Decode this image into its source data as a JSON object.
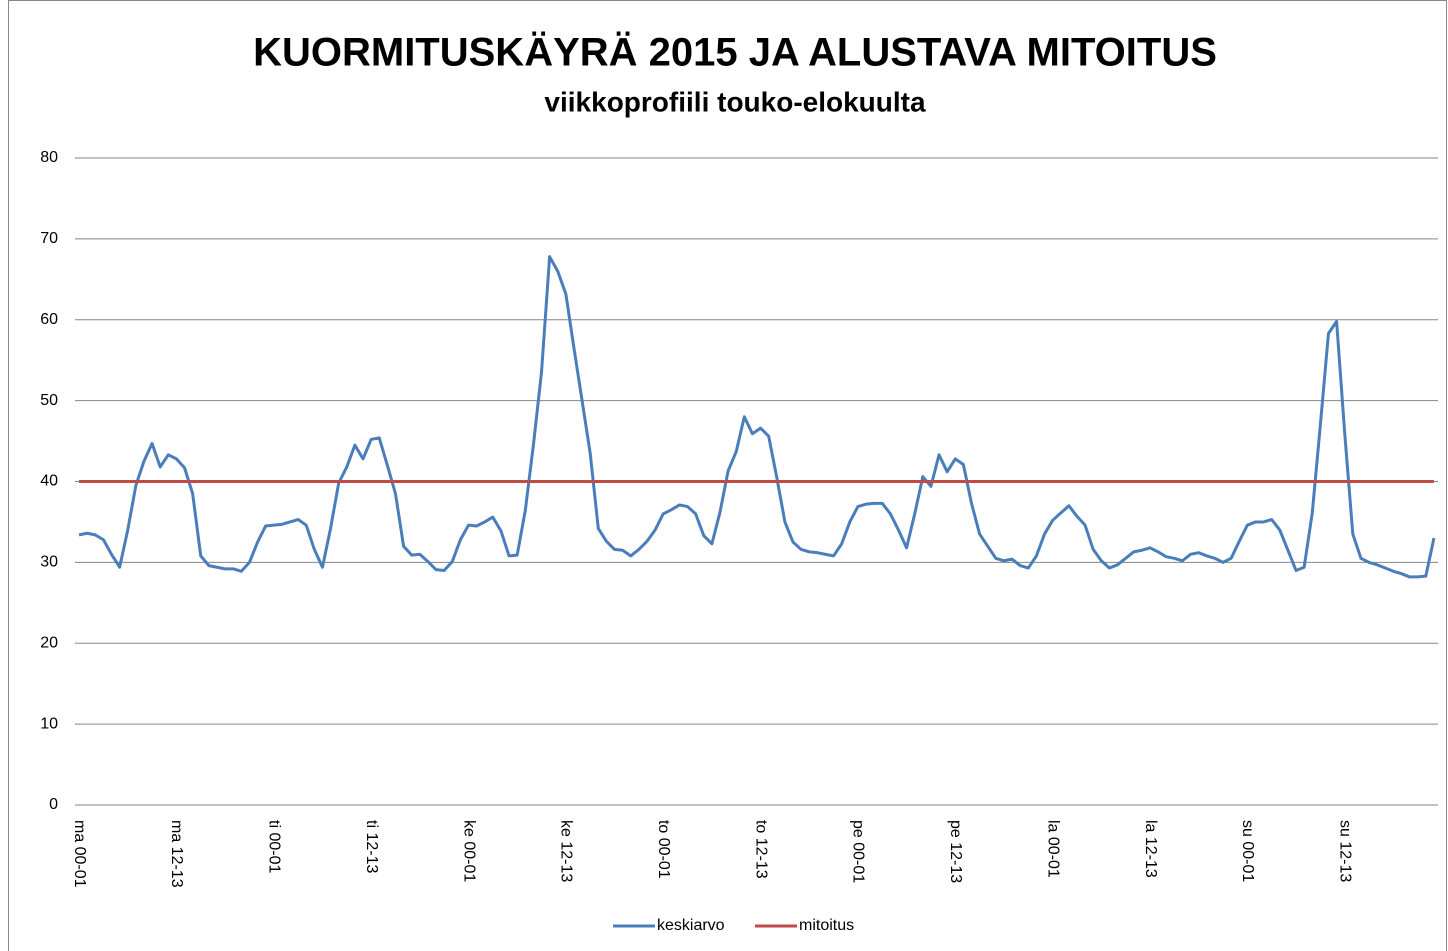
{
  "chart_data": {
    "type": "line",
    "title": "KUORMITUSKÄYRÄ 2015 JA ALUSTAVA MITOITUS",
    "subtitle": "viikkoprofiili touko-elokuulta",
    "categories": [
      "ma 00-01",
      null,
      null,
      null,
      null,
      null,
      null,
      null,
      null,
      null,
      null,
      null,
      "ma 12-13",
      null,
      null,
      null,
      null,
      null,
      null,
      null,
      null,
      null,
      null,
      null,
      "ti 00-01",
      null,
      null,
      null,
      null,
      null,
      null,
      null,
      null,
      null,
      null,
      null,
      "ti 12-13",
      null,
      null,
      null,
      null,
      null,
      null,
      null,
      null,
      null,
      null,
      null,
      "ke 00-01",
      null,
      null,
      null,
      null,
      null,
      null,
      null,
      null,
      null,
      null,
      null,
      "ke 12-13",
      null,
      null,
      null,
      null,
      null,
      null,
      null,
      null,
      null,
      null,
      null,
      "to 00-01",
      null,
      null,
      null,
      null,
      null,
      null,
      null,
      null,
      null,
      null,
      null,
      "to 12-13",
      null,
      null,
      null,
      null,
      null,
      null,
      null,
      null,
      null,
      null,
      null,
      "pe 00-01",
      null,
      null,
      null,
      null,
      null,
      null,
      null,
      null,
      null,
      null,
      null,
      "pe 12-13",
      null,
      null,
      null,
      null,
      null,
      null,
      null,
      null,
      null,
      null,
      null,
      "la 00-01",
      null,
      null,
      null,
      null,
      null,
      null,
      null,
      null,
      null,
      null,
      null,
      "la 12-13",
      null,
      null,
      null,
      null,
      null,
      null,
      null,
      null,
      null,
      null,
      null,
      "su 00-01",
      null,
      null,
      null,
      null,
      null,
      null,
      null,
      null,
      null,
      null,
      null,
      "su 12-13",
      null,
      null,
      null,
      null,
      null,
      null,
      null,
      null,
      null,
      null,
      null
    ],
    "series": [
      {
        "name": "keskiarvo",
        "color": "#4a7ebb",
        "values": [
          33.4,
          33.6,
          33.4,
          32.8,
          31,
          29.4,
          34,
          39.5,
          42.5,
          44.7,
          41.8,
          43.3,
          42.8,
          41.7,
          38.5,
          30.8,
          29.6,
          29.4,
          29.2,
          29.2,
          28.9,
          30,
          32.5,
          34.5,
          34.6,
          34.7,
          35,
          35.3,
          34.6,
          31.6,
          29.4,
          34.2,
          39.8,
          41.8,
          44.5,
          42.8,
          45.2,
          45.4,
          42,
          38.5,
          32,
          30.9,
          31,
          30.1,
          29.1,
          29,
          30.1,
          32.8,
          34.6,
          34.5,
          35,
          35.6,
          33.9,
          30.8,
          30.9,
          36.4,
          44.5,
          53.5,
          67.8,
          66,
          63.2,
          56.5,
          50,
          43.5,
          34.2,
          32.6,
          31.6,
          31.5,
          30.8,
          31.6,
          32.6,
          34,
          36,
          36.5,
          37.1,
          36.9,
          36,
          33.3,
          32.3,
          36.2,
          41.3,
          43.7,
          48,
          45.9,
          46.6,
          45.6,
          40.5,
          35,
          32.5,
          31.6,
          31.3,
          31.2,
          31,
          30.8,
          32.3,
          35,
          36.9,
          37.2,
          37.3,
          37.3,
          36,
          34,
          31.8,
          36,
          40.6,
          39.4,
          43.3,
          41.2,
          42.8,
          42.1,
          37.3,
          33.5,
          32,
          30.5,
          30.2,
          30.4,
          29.6,
          29.3,
          30.8,
          33.5,
          35.2,
          36.1,
          37,
          35.7,
          34.6,
          31.6,
          30.2,
          29.3,
          29.7,
          30.5,
          31.3,
          31.5,
          31.8,
          31.3,
          30.7,
          30.5,
          30.2,
          31,
          31.2,
          30.8,
          30.5,
          30,
          30.5,
          32.6,
          34.6,
          35,
          35,
          35.3,
          34,
          31.5,
          29,
          29.4,
          36.1,
          47,
          58.3,
          59.8,
          46,
          33.5,
          30.5,
          30,
          29.7,
          29.3,
          28.9,
          28.6,
          28.2,
          28.2,
          28.3,
          33
        ]
      },
      {
        "name": "mitoitus",
        "color": "#be4b48",
        "values": [
          40,
          40,
          40,
          40,
          40,
          40,
          40,
          40,
          40,
          40,
          40,
          40,
          40,
          40,
          40,
          40,
          40,
          40,
          40,
          40,
          40,
          40,
          40,
          40,
          40,
          40,
          40,
          40,
          40,
          40,
          40,
          40,
          40,
          40,
          40,
          40,
          40,
          40,
          40,
          40,
          40,
          40,
          40,
          40,
          40,
          40,
          40,
          40,
          40,
          40,
          40,
          40,
          40,
          40,
          40,
          40,
          40,
          40,
          40,
          40,
          40,
          40,
          40,
          40,
          40,
          40,
          40,
          40,
          40,
          40,
          40,
          40,
          40,
          40,
          40,
          40,
          40,
          40,
          40,
          40,
          40,
          40,
          40,
          40,
          40,
          40,
          40,
          40,
          40,
          40,
          40,
          40,
          40,
          40,
          40,
          40,
          40,
          40,
          40,
          40,
          40,
          40,
          40,
          40,
          40,
          40,
          40,
          40,
          40,
          40,
          40,
          40,
          40,
          40,
          40,
          40,
          40,
          40,
          40,
          40,
          40,
          40,
          40,
          40,
          40,
          40,
          40,
          40,
          40,
          40,
          40,
          40,
          40,
          40,
          40,
          40,
          40,
          40,
          40,
          40,
          40,
          40,
          40,
          40,
          40,
          40,
          40,
          40,
          40,
          40,
          40,
          40,
          40,
          40,
          40,
          40,
          40,
          40,
          40,
          40,
          40,
          40,
          40,
          40,
          40,
          40,
          40,
          40
        ]
      }
    ],
    "ylim": [
      0,
      80
    ],
    "yticks": [
      0,
      10,
      20,
      30,
      40,
      50,
      60,
      70,
      80
    ],
    "grid": true,
    "legend": "bottom"
  }
}
